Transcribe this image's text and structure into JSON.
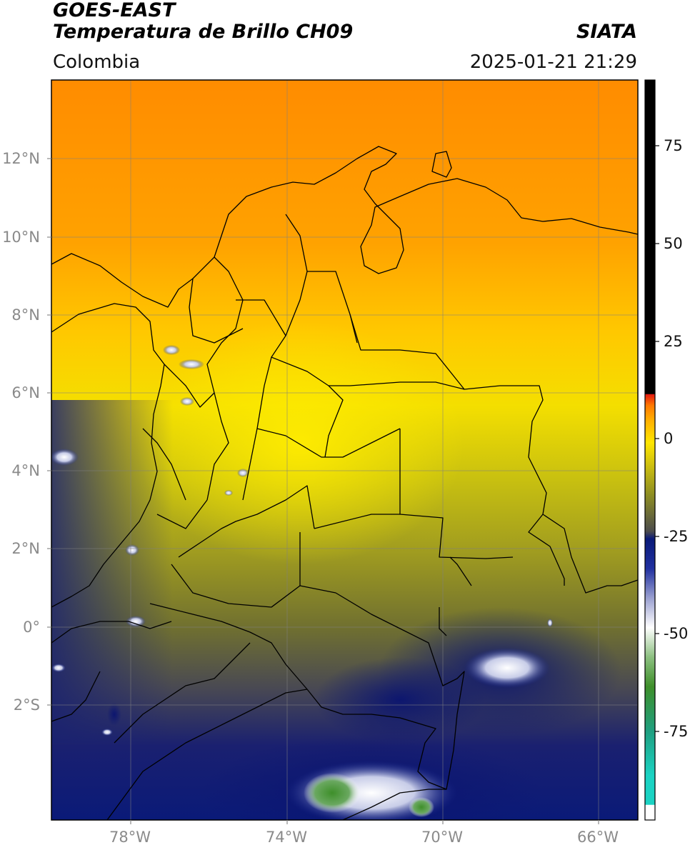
{
  "header": {
    "satellite": "GOES-EAST",
    "product": "Temperatura de Brillo CH09",
    "region": "Colombia",
    "org": "SIATA",
    "datetime": "2025-01-21 21:29"
  },
  "map": {
    "lat_ticks": [
      "12°N",
      "10°N",
      "8°N",
      "6°N",
      "4°N",
      "2°N",
      "0°",
      "2°S"
    ],
    "lon_ticks": [
      "78°W",
      "74°W",
      "70°W",
      "66°W"
    ]
  },
  "colorbar": {
    "tick_labels": [
      "75",
      "50",
      "25",
      "0",
      "-25",
      "-50",
      "-75"
    ],
    "colors": {
      "warm_black": "#000000",
      "red": "#e41a10",
      "orange": "#ff8a00",
      "yellow": "#ffe600",
      "olive": "#8f8f22",
      "gray": "#4c4c4c",
      "navy": "#0a1a78",
      "white": "#ffffff",
      "green": "#3e8f2a",
      "teal": "#1bd3c3"
    }
  }
}
